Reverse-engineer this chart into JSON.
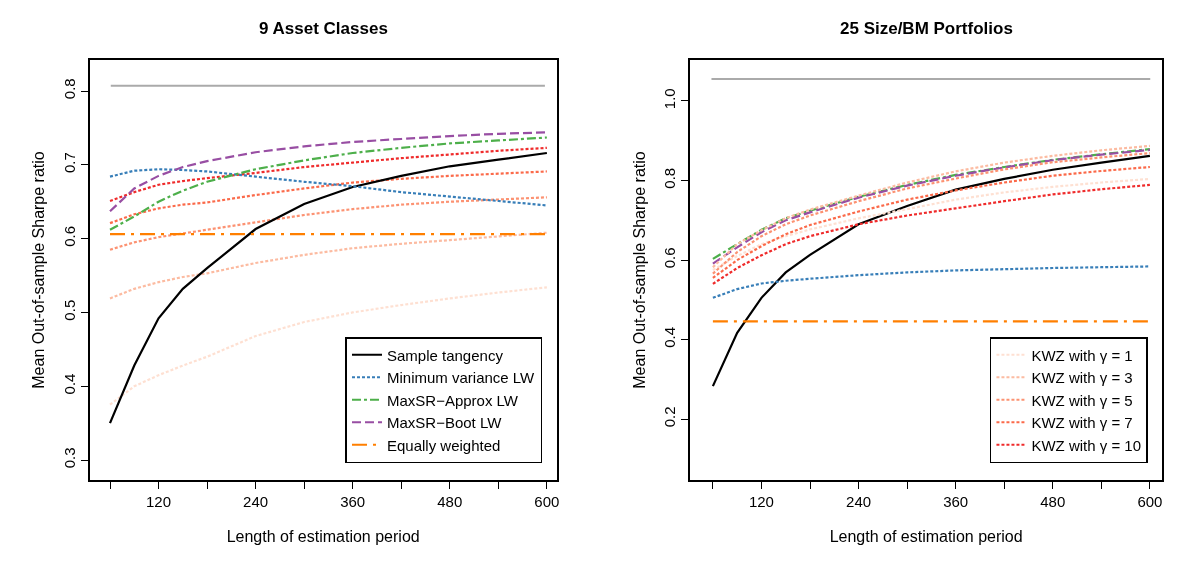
{
  "chart_data": [
    {
      "type": "line",
      "title": "9 Asset Classes",
      "xlabel": "Length of estimation period",
      "ylabel": "Mean Out-of-sample Sharpe ratio",
      "x": [
        60,
        90,
        120,
        150,
        180,
        240,
        300,
        360,
        420,
        480,
        540,
        600
      ],
      "xlim": [
        35,
        612
      ],
      "xticks": [
        {
          "value": 60,
          "label": null
        },
        120,
        {
          "value": 180,
          "label": null
        },
        240,
        {
          "value": 300,
          "label": null
        },
        360,
        {
          "value": 420,
          "label": null
        },
        480,
        {
          "value": 540,
          "label": null
        },
        600
      ],
      "ylim": [
        0.273,
        0.842
      ],
      "yticks": [
        0.3,
        0.4,
        0.5,
        0.6,
        0.7,
        0.8
      ],
      "legend": "bottom right",
      "marker": "none",
      "ref_lines": [
        {
          "axis": "y",
          "value": 0.807,
          "color": "#aaaaaa",
          "line_style": "solid"
        }
      ],
      "series": [
        {
          "color": "#fee0d2",
          "line_style": "dotted",
          "values": [
            0.375,
            0.4,
            0.415,
            0.428,
            0.44,
            0.468,
            0.487,
            0.5,
            0.51,
            0.519,
            0.527,
            0.534
          ]
        },
        {
          "color": "#fcbba1",
          "line_style": "dotted",
          "values": [
            0.519,
            0.532,
            0.541,
            0.548,
            0.553,
            0.567,
            0.578,
            0.587,
            0.593,
            0.598,
            0.603,
            0.608
          ]
        },
        {
          "color": "#fc9272",
          "line_style": "dotted",
          "values": [
            0.585,
            0.595,
            0.602,
            0.607,
            0.612,
            0.622,
            0.632,
            0.64,
            0.646,
            0.65,
            0.653,
            0.656
          ]
        },
        {
          "color": "#fb6a4a",
          "line_style": "dotted",
          "values": [
            0.621,
            0.633,
            0.641,
            0.646,
            0.649,
            0.659,
            0.668,
            0.676,
            0.681,
            0.685,
            0.688,
            0.691
          ]
        },
        {
          "color": "#ef2b2b",
          "line_style": "dotted",
          "values": [
            0.651,
            0.663,
            0.673,
            0.678,
            0.682,
            0.689,
            0.697,
            0.703,
            0.709,
            0.714,
            0.719,
            0.723
          ]
        },
        {
          "name": "Sample tangency",
          "color": "#000000",
          "line_style": "solid",
          "values": [
            0.35,
            0.428,
            0.492,
            0.532,
            0.56,
            0.613,
            0.647,
            0.67,
            0.685,
            0.698,
            0.707,
            0.716
          ]
        },
        {
          "name": "Minimum variance LW",
          "color": "#377eb8",
          "line_style": "dotted",
          "values": [
            0.684,
            0.692,
            0.694,
            0.693,
            0.691,
            0.684,
            0.677,
            0.671,
            0.663,
            0.657,
            0.651,
            0.645
          ]
        },
        {
          "name": "MaxSR−Approx LW",
          "color": "#4daf4a",
          "line_style": "dashdot",
          "values": [
            0.612,
            0.63,
            0.65,
            0.665,
            0.677,
            0.694,
            0.706,
            0.716,
            0.723,
            0.729,
            0.733,
            0.737
          ]
        },
        {
          "name": "MaxSR−Boot LW",
          "color": "#984ea3",
          "line_style": "longdash",
          "values": [
            0.637,
            0.668,
            0.685,
            0.697,
            0.705,
            0.717,
            0.725,
            0.731,
            0.735,
            0.739,
            0.742,
            0.744
          ]
        },
        {
          "name": "Equally weighted",
          "color": "#ff7f00",
          "line_style": "longdashdot",
          "values": [
            0.606,
            0.606,
            0.606,
            0.606,
            0.606,
            0.606,
            0.606,
            0.606,
            0.606,
            0.606,
            0.606,
            0.606
          ]
        }
      ]
    },
    {
      "type": "line",
      "title": "25 Size/BM Portfolios",
      "xlabel": "Length of estimation period",
      "ylabel": "Mean Out-of-sample Sharpe ratio",
      "x": [
        60,
        90,
        120,
        150,
        180,
        240,
        300,
        360,
        420,
        480,
        540,
        600
      ],
      "xlim": [
        32,
        615
      ],
      "xticks": [
        {
          "value": 60,
          "label": null
        },
        120,
        {
          "value": 180,
          "label": null
        },
        240,
        {
          "value": 300,
          "label": null
        },
        360,
        {
          "value": 420,
          "label": null
        },
        480,
        {
          "value": 540,
          "label": null
        },
        600
      ],
      "ylim": [
        0.047,
        1.103
      ],
      "yticks": [
        0.2,
        0.4,
        0.6,
        0.8,
        {
          "value": 1.0,
          "label": "1.0"
        }
      ],
      "legend": "bottom right",
      "marker": "none",
      "ref_lines": [
        {
          "axis": "y",
          "value": 1.055,
          "color": "#aaaaaa",
          "line_style": "solid"
        }
      ],
      "series": [
        {
          "color": "#000000",
          "line_style": "solid",
          "values": [
            0.283,
            0.417,
            0.505,
            0.569,
            0.613,
            0.69,
            0.736,
            0.777,
            0.804,
            0.827,
            0.845,
            0.862
          ]
        },
        {
          "color": "#377eb8",
          "line_style": "dotted",
          "values": [
            0.505,
            0.527,
            0.541,
            0.548,
            0.553,
            0.562,
            0.569,
            0.574,
            0.577,
            0.58,
            0.582,
            0.584
          ]
        },
        {
          "color": "#4daf4a",
          "line_style": "dashdot",
          "values": [
            0.603,
            0.64,
            0.676,
            0.705,
            0.724,
            0.759,
            0.789,
            0.814,
            0.834,
            0.852,
            0.866,
            0.879
          ]
        },
        {
          "color": "#984ea3",
          "line_style": "longdash",
          "values": [
            0.591,
            0.632,
            0.67,
            0.7,
            0.72,
            0.757,
            0.787,
            0.812,
            0.833,
            0.851,
            0.865,
            0.877
          ]
        },
        {
          "color": "#ff7f00",
          "line_style": "longdashdot",
          "values": [
            0.446,
            0.446,
            0.446,
            0.446,
            0.446,
            0.446,
            0.446,
            0.446,
            0.446,
            0.446,
            0.446,
            0.446
          ]
        },
        {
          "name": "KWZ with γ = 1",
          "color": "#fee0d2",
          "line_style": "dotted",
          "values": [
            0.575,
            0.61,
            0.64,
            0.66,
            0.677,
            0.705,
            0.728,
            0.752,
            0.77,
            0.784,
            0.795,
            0.804
          ]
        },
        {
          "name": "KWZ with γ = 3",
          "color": "#fcbba1",
          "line_style": "dotted",
          "values": [
            0.582,
            0.64,
            0.675,
            0.705,
            0.727,
            0.762,
            0.795,
            0.823,
            0.845,
            0.862,
            0.876,
            0.887
          ]
        },
        {
          "name": "KWZ with γ = 5",
          "color": "#fc9272",
          "line_style": "dotted",
          "values": [
            0.566,
            0.62,
            0.66,
            0.69,
            0.712,
            0.748,
            0.78,
            0.805,
            0.828,
            0.846,
            0.858,
            0.869
          ]
        },
        {
          "name": "KWZ with γ = 7",
          "color": "#fb6a4a",
          "line_style": "dotted",
          "values": [
            0.555,
            0.6,
            0.635,
            0.665,
            0.688,
            0.722,
            0.752,
            0.775,
            0.795,
            0.812,
            0.824,
            0.834
          ]
        },
        {
          "name": "KWZ with γ = 10",
          "color": "#ef2b2b",
          "line_style": "dotted",
          "values": [
            0.54,
            0.58,
            0.612,
            0.64,
            0.66,
            0.69,
            0.712,
            0.73,
            0.748,
            0.765,
            0.778,
            0.789
          ]
        }
      ]
    }
  ]
}
